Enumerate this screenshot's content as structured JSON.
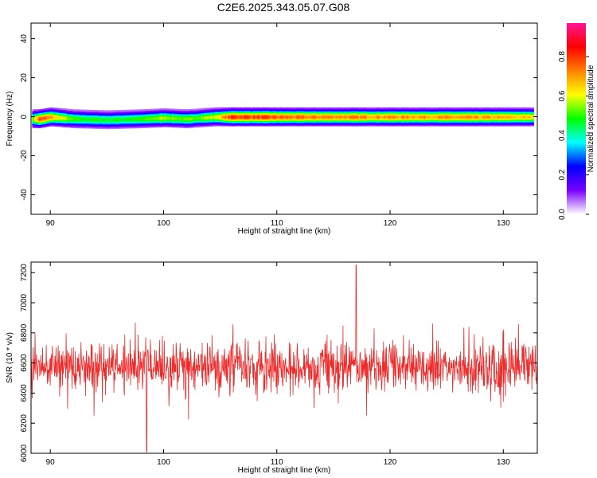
{
  "title": "C2E6.2025.343.05.07.G08",
  "colorbar": {
    "label": "Normalized spectral amplitude",
    "ticks": [
      {
        "value": 0.0,
        "label": "0.0"
      },
      {
        "value": 0.2,
        "label": "0.2"
      },
      {
        "value": 0.4,
        "label": "0.4"
      },
      {
        "value": 0.6,
        "label": "0.6"
      },
      {
        "value": 0.8,
        "label": "0.8"
      }
    ],
    "range": [
      0,
      0.97
    ],
    "colormap": [
      "#ffffff",
      "#7a00ff",
      "#0000ff",
      "#00ffff",
      "#00ff00",
      "#ffff00",
      "#ff8000",
      "#ff0000",
      "#ff1493"
    ]
  },
  "chart_data": [
    {
      "type": "heatmap",
      "xlabel": "Height of straight line (km)",
      "ylabel": "Frequency (Hz)",
      "xlim": [
        88.3,
        133.0
      ],
      "ylim": [
        -50,
        48
      ],
      "xticks": [
        {
          "value": 90,
          "label": "90"
        },
        {
          "value": 100,
          "label": "100"
        },
        {
          "value": 110,
          "label": "110"
        },
        {
          "value": 120,
          "label": "120"
        },
        {
          "value": 130,
          "label": "130"
        }
      ],
      "yticks": [
        {
          "value": -40,
          "label": "-40"
        },
        {
          "value": -20,
          "label": "-20"
        },
        {
          "value": 0,
          "label": "0"
        },
        {
          "value": 20,
          "label": "20"
        },
        {
          "value": 40,
          "label": "40"
        }
      ],
      "data_extent_x": [
        88.4,
        132.6
      ],
      "band_center_hz": 0,
      "band_profile": [
        {
          "x": 88.4,
          "peak": 0.55,
          "center": -1.0
        },
        {
          "x": 89.0,
          "peak": 0.8,
          "center": -1.0
        },
        {
          "x": 90.0,
          "peak": 0.7,
          "center": 0.0
        },
        {
          "x": 92.0,
          "peak": 0.5,
          "center": -1.0
        },
        {
          "x": 95.0,
          "peak": 0.48,
          "center": -1.5
        },
        {
          "x": 98.0,
          "peak": 0.5,
          "center": -1.0
        },
        {
          "x": 100.0,
          "peak": 0.58,
          "center": -0.5
        },
        {
          "x": 102.0,
          "peak": 0.52,
          "center": -1.0
        },
        {
          "x": 104.5,
          "peak": 0.6,
          "center": 0.0
        },
        {
          "x": 106.0,
          "peak": 0.82,
          "center": 0.0
        },
        {
          "x": 108.0,
          "peak": 0.8,
          "center": 0.0
        },
        {
          "x": 112.0,
          "peak": 0.74,
          "center": 0.0
        },
        {
          "x": 120.0,
          "peak": 0.72,
          "center": 0.0
        },
        {
          "x": 128.0,
          "peak": 0.7,
          "center": 0.0
        },
        {
          "x": 132.6,
          "peak": 0.66,
          "center": 0.0
        }
      ]
    },
    {
      "type": "line",
      "xlabel": "Height of straight line (km)",
      "ylabel": "SNR (10 * v/v)",
      "xlim": [
        88.3,
        133.0
      ],
      "ylim": [
        6000,
        7270
      ],
      "xticks": [
        {
          "value": 90,
          "label": "90"
        },
        {
          "value": 100,
          "label": "100"
        },
        {
          "value": 110,
          "label": "110"
        },
        {
          "value": 120,
          "label": "120"
        },
        {
          "value": 130,
          "label": "130"
        }
      ],
      "yticks": [
        {
          "value": 6000,
          "label": "6000"
        },
        {
          "value": 6200,
          "label": "6200"
        },
        {
          "value": 6400,
          "label": "6400"
        },
        {
          "value": 6600,
          "label": "6600"
        },
        {
          "value": 6800,
          "label": "6800"
        },
        {
          "value": 7000,
          "label": "7000"
        },
        {
          "value": 7200,
          "label": "7200"
        }
      ],
      "color": "#ee2a2a",
      "series": [
        {
          "x_range": [
            88.3,
            133.0
          ],
          "sample_count": 1400,
          "mean": 6570,
          "typical_spread": 150,
          "max": 7250,
          "max_at_x": 117.0,
          "min": 6010,
          "min_at_x": 98.5
        }
      ]
    }
  ]
}
